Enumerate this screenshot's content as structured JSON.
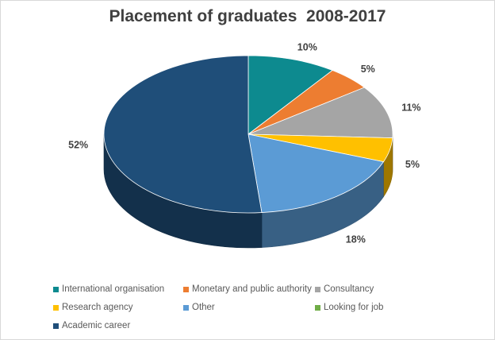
{
  "chart_data": {
    "type": "pie",
    "title": "Placement of graduates  2008-2017",
    "three_d": true,
    "legend_position": "bottom",
    "slices": [
      {
        "name": "International organisation",
        "value": 10,
        "label": "10%",
        "color": "#0d8a8f"
      },
      {
        "name": "Monetary and public authority",
        "value": 5,
        "label": "5%",
        "color": "#ed7d31"
      },
      {
        "name": "Consultancy",
        "value": 11,
        "label": "11%",
        "color": "#a5a5a5"
      },
      {
        "name": "Research agency",
        "value": 5,
        "label": "5%",
        "color": "#ffc000"
      },
      {
        "name": "Other",
        "value": 18,
        "label": "18%",
        "color": "#5b9bd5"
      },
      {
        "name": "Looking for job",
        "value": 0,
        "label": "",
        "color": "#70ad47"
      },
      {
        "name": "Academic career",
        "value": 52,
        "label": "52%",
        "color": "#1f4e79"
      }
    ]
  }
}
